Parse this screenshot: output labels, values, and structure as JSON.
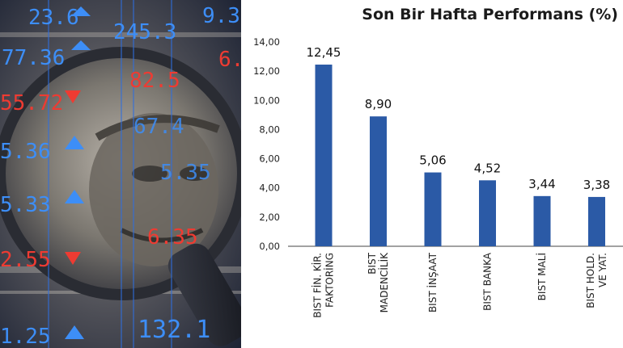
{
  "photo": {
    "numbers": [
      "23.6",
      "245.3",
      "9.3",
      "77.36",
      "6.",
      "82.5",
      "55.72",
      "67.4",
      "5.36",
      "5.35",
      "5.33",
      "6.35",
      "2.55",
      "1.25",
      "132.1"
    ]
  },
  "chart_data": {
    "type": "bar",
    "title": "Son Bir Hafta Performans (%)",
    "categories": [
      [
        "BIST FİN. KİR.",
        "FAKTORİNG"
      ],
      [
        "BIST",
        "MADENCİLİK"
      ],
      [
        "BIST İNŞAAT"
      ],
      [
        "BIST BANKA"
      ],
      [
        "BIST MALİ"
      ],
      [
        "BIST HOLD.",
        "VE YAT."
      ]
    ],
    "values": [
      12.45,
      8.9,
      5.06,
      4.52,
      3.44,
      3.38
    ],
    "value_labels": [
      "12,45",
      "8,90",
      "5,06",
      "4,52",
      "3,44",
      "3,38"
    ],
    "yticks": [
      "0,00",
      "2,00",
      "4,00",
      "6,00",
      "8,00",
      "10,00",
      "12,00",
      "14,00"
    ],
    "ylim": [
      0,
      14
    ],
    "bar_color": "#2b5aa6",
    "grid": false,
    "legend": "none"
  }
}
